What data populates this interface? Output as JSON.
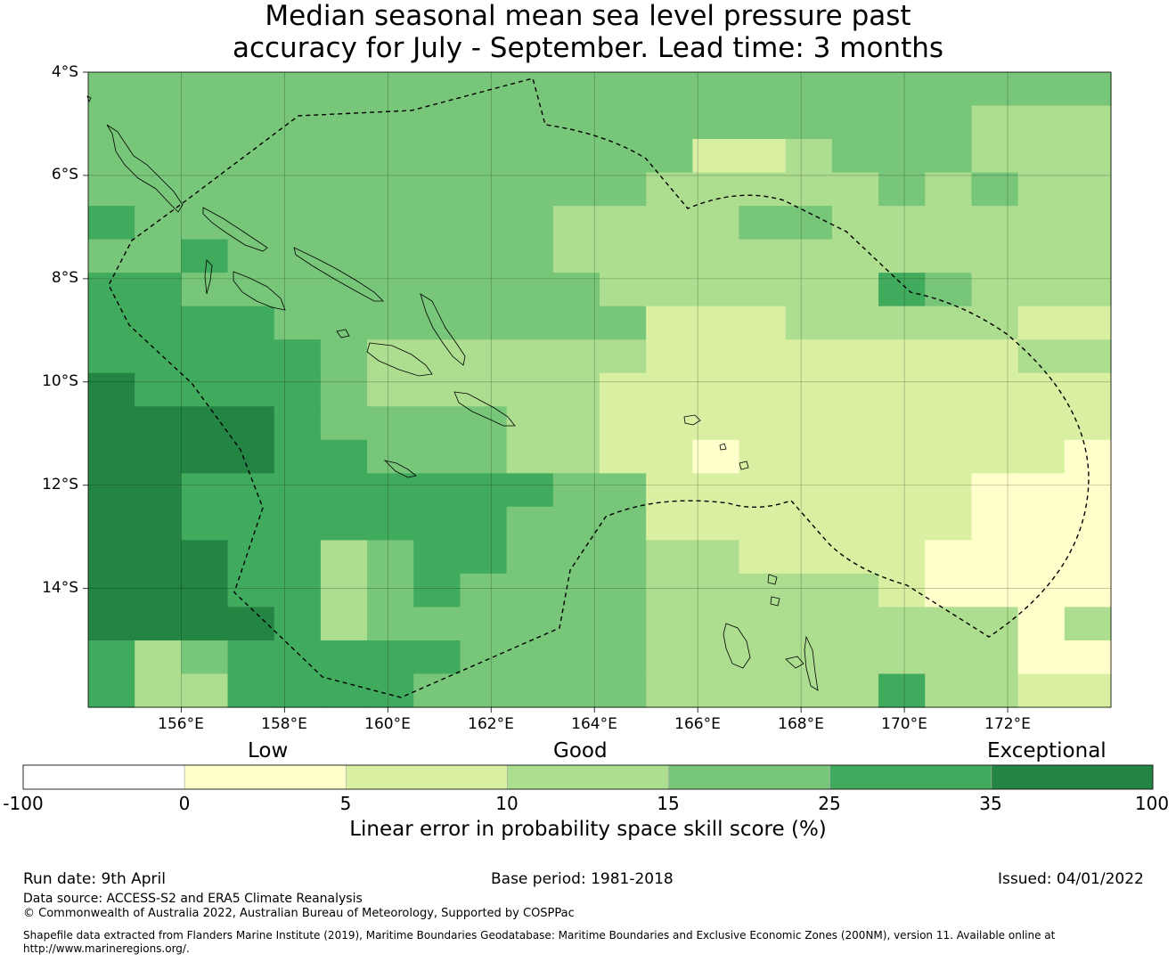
{
  "title": {
    "line1": "Median seasonal mean sea level pressure past",
    "line2": "accuracy for July - September. Lead time: 3 months"
  },
  "map": {
    "lat_ticks": [
      "4°S",
      "6°S",
      "8°S",
      "10°S",
      "12°S",
      "14°S"
    ],
    "lon_ticks": [
      "156°E",
      "158°E",
      "160°E",
      "162°E",
      "164°E",
      "166°E",
      "168°E",
      "170°E",
      "172°E"
    ],
    "lon_range": [
      154.2,
      174.0
    ],
    "lat_range": [
      -4.0,
      -16.3
    ],
    "boundary_style": "dashed"
  },
  "colorbar": {
    "categories": [
      "Low",
      "Good",
      "Exceptional"
    ],
    "ticks": [
      "-100",
      "0",
      "5",
      "10",
      "15",
      "25",
      "35",
      "100"
    ],
    "colors": [
      "#ffffff",
      "#ffffcc",
      "#d9f0a3",
      "#addd8e",
      "#78c679",
      "#41ab5d",
      "#238443"
    ],
    "title": "Linear error in probability space skill score (%)"
  },
  "footer": {
    "run_date": "Run date: 9th April",
    "base_period": "Base period: 1981-2018",
    "issued": "Issued: 04/01/2022",
    "data_source": "Data source: ACCESS-S2 and ERA5 Climate Reanalysis",
    "copyright": "© Commonwealth of Australia 2022, Australian Bureau of Meteorology, Supported by COSPPac",
    "shapefile": "Shapefile data extracted from Flanders Marine Institute (2019), Maritime Boundaries Geodatabase: Maritime Boundaries and Exclusive Economic Zones (200NM), version 11. Available online at http://www.marineregions.org/."
  },
  "grid_rows": [
    "4444444444444444444444",
    "4444444444444444444333",
    "4444444444444223444333",
    "4444444444443333343433",
    "5444444444333344333333",
    "4454444444333333333333",
    "5544444444433333354333",
    "5555444444442223333322",
    "5555543333332222222233",
    "6555543333322222222222",
    "6666544443322222222222",
    "6666554443322122222221",
    "6655555555442222222111",
    "6655555554442222222111",
    "6665534554443322221111",
    "6665534544443333321111",
    "6666534444443333333313",
    "5345555544443333333311",
    "5335555444443333353322"
  ]
}
